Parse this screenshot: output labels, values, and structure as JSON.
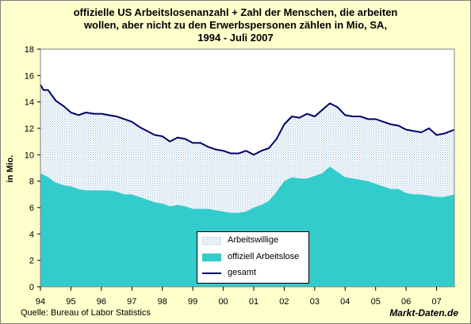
{
  "title_lines": [
    "offizielle US  Arbeitslosenanzahl + Zahl der Menschen, die arbeiten",
    "wollen, aber nicht zu den Erwerbspersonen zählen in Mio, SA,",
    "1994 - Juli 2007"
  ],
  "source": "Quelle: Bureau of Labor Statistics",
  "brand": "Markt-Daten.de",
  "colors": {
    "background": "#ffffcc",
    "plot_background": "#ffffff",
    "unemployed_fill": "#33cccc",
    "willing_dots": "#8fb8d8",
    "total_line": "#000066"
  },
  "chart_data": {
    "type": "area",
    "ylabel": "in Mio.",
    "ylim": [
      0,
      18
    ],
    "yticks": [
      "0",
      "2",
      "4",
      "6",
      "8",
      "10",
      "12",
      "14",
      "16",
      "18"
    ],
    "xlim": [
      1994.0,
      2007.5833
    ],
    "xticks": [
      "94",
      "95",
      "96",
      "97",
      "98",
      "99",
      "00",
      "01",
      "02",
      "03",
      "04",
      "05",
      "06",
      "07"
    ],
    "grid": false,
    "legend_position": "bottom-center",
    "legend": [
      "Arbeitswillige",
      "offiziell Arbeitslose",
      "gesamt"
    ],
    "series": [
      {
        "name": "offiziell Arbeitslose",
        "kind": "area",
        "points": [
          [
            1994.0,
            8.6
          ],
          [
            1994.25,
            8.3
          ],
          [
            1994.5,
            7.9
          ],
          [
            1994.75,
            7.7
          ],
          [
            1995.0,
            7.6
          ],
          [
            1995.25,
            7.4
          ],
          [
            1995.5,
            7.3
          ],
          [
            1995.75,
            7.3
          ],
          [
            1996.0,
            7.3
          ],
          [
            1996.25,
            7.3
          ],
          [
            1996.5,
            7.2
          ],
          [
            1996.75,
            7.0
          ],
          [
            1997.0,
            7.0
          ],
          [
            1997.25,
            6.8
          ],
          [
            1997.5,
            6.6
          ],
          [
            1997.75,
            6.4
          ],
          [
            1998.0,
            6.3
          ],
          [
            1998.25,
            6.1
          ],
          [
            1998.5,
            6.2
          ],
          [
            1998.75,
            6.1
          ],
          [
            1999.0,
            5.9
          ],
          [
            1999.25,
            5.9
          ],
          [
            1999.5,
            5.9
          ],
          [
            1999.75,
            5.8
          ],
          [
            2000.0,
            5.7
          ],
          [
            2000.25,
            5.6
          ],
          [
            2000.5,
            5.6
          ],
          [
            2000.75,
            5.7
          ],
          [
            2001.0,
            6.0
          ],
          [
            2001.25,
            6.2
          ],
          [
            2001.5,
            6.5
          ],
          [
            2001.75,
            7.2
          ],
          [
            2002.0,
            8.0
          ],
          [
            2002.25,
            8.3
          ],
          [
            2002.5,
            8.2
          ],
          [
            2002.75,
            8.2
          ],
          [
            2003.0,
            8.4
          ],
          [
            2003.25,
            8.6
          ],
          [
            2003.5,
            9.1
          ],
          [
            2003.75,
            8.7
          ],
          [
            2004.0,
            8.3
          ],
          [
            2004.25,
            8.2
          ],
          [
            2004.5,
            8.1
          ],
          [
            2004.75,
            8.0
          ],
          [
            2005.0,
            7.8
          ],
          [
            2005.25,
            7.6
          ],
          [
            2005.5,
            7.4
          ],
          [
            2005.75,
            7.4
          ],
          [
            2006.0,
            7.1
          ],
          [
            2006.25,
            7.0
          ],
          [
            2006.5,
            7.0
          ],
          [
            2006.75,
            6.9
          ],
          [
            2007.0,
            6.8
          ],
          [
            2007.25,
            6.8
          ],
          [
            2007.5833,
            7.0
          ]
        ]
      },
      {
        "name": "gesamt",
        "kind": "line",
        "points": [
          [
            1994.0,
            15.3
          ],
          [
            1994.1,
            14.9
          ],
          [
            1994.25,
            14.9
          ],
          [
            1994.5,
            14.1
          ],
          [
            1994.75,
            13.7
          ],
          [
            1995.0,
            13.2
          ],
          [
            1995.25,
            13.0
          ],
          [
            1995.5,
            13.2
          ],
          [
            1995.75,
            13.1
          ],
          [
            1996.0,
            13.1
          ],
          [
            1996.25,
            13.0
          ],
          [
            1996.5,
            12.9
          ],
          [
            1996.75,
            12.7
          ],
          [
            1997.0,
            12.5
          ],
          [
            1997.25,
            12.1
          ],
          [
            1997.5,
            11.8
          ],
          [
            1997.75,
            11.5
          ],
          [
            1998.0,
            11.4
          ],
          [
            1998.25,
            11.0
          ],
          [
            1998.5,
            11.3
          ],
          [
            1998.75,
            11.2
          ],
          [
            1999.0,
            10.9
          ],
          [
            1999.25,
            10.9
          ],
          [
            1999.5,
            10.6
          ],
          [
            1999.75,
            10.4
          ],
          [
            2000.0,
            10.3
          ],
          [
            2000.25,
            10.1
          ],
          [
            2000.5,
            10.1
          ],
          [
            2000.75,
            10.3
          ],
          [
            2001.0,
            10.0
          ],
          [
            2001.25,
            10.3
          ],
          [
            2001.5,
            10.5
          ],
          [
            2001.75,
            11.2
          ],
          [
            2002.0,
            12.3
          ],
          [
            2002.25,
            12.9
          ],
          [
            2002.5,
            12.8
          ],
          [
            2002.75,
            13.1
          ],
          [
            2003.0,
            12.9
          ],
          [
            2003.25,
            13.4
          ],
          [
            2003.5,
            13.9
          ],
          [
            2003.75,
            13.6
          ],
          [
            2004.0,
            13.0
          ],
          [
            2004.25,
            12.9
          ],
          [
            2004.5,
            12.9
          ],
          [
            2004.75,
            12.7
          ],
          [
            2005.0,
            12.7
          ],
          [
            2005.25,
            12.5
          ],
          [
            2005.5,
            12.3
          ],
          [
            2005.75,
            12.2
          ],
          [
            2006.0,
            11.9
          ],
          [
            2006.25,
            11.8
          ],
          [
            2006.5,
            11.7
          ],
          [
            2006.75,
            12.0
          ],
          [
            2007.0,
            11.5
          ],
          [
            2007.25,
            11.6
          ],
          [
            2007.5833,
            11.9
          ]
        ]
      }
    ]
  }
}
